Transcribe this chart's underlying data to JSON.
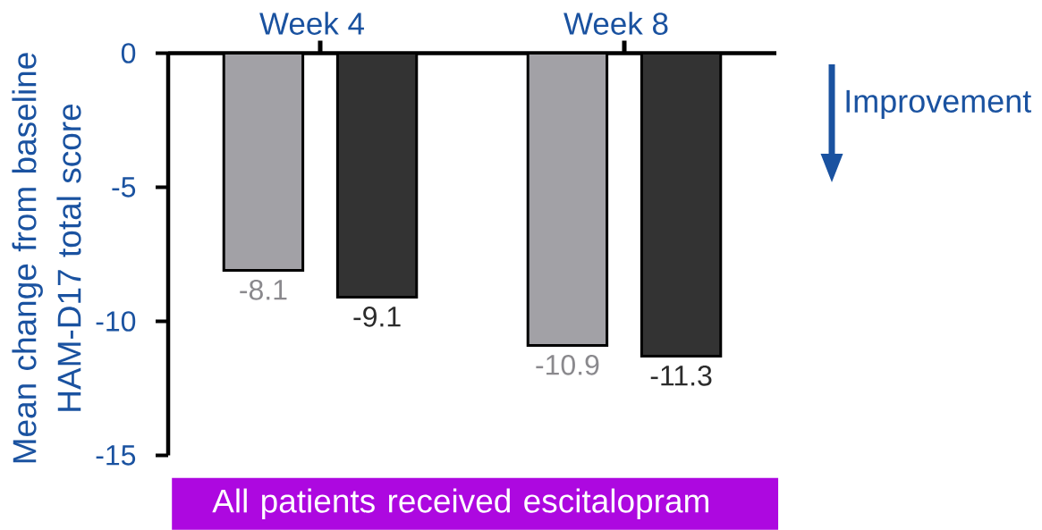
{
  "chart_data": {
    "type": "bar",
    "ylabel": "Mean change from baseline HAM-D17 total score",
    "categories": [
      "Week 4",
      "Week 8"
    ],
    "series": [
      {
        "color": "#a2a1a6",
        "values": [
          -8.1,
          -10.9
        ]
      },
      {
        "color": "#333333",
        "values": [
          -9.1,
          -11.3
        ]
      }
    ],
    "ylim": [
      -15,
      0
    ],
    "yticks": [
      -15,
      -10,
      -5,
      0
    ],
    "data_labels": true,
    "annotations": [
      "Improvement",
      "All patients received escitalopram"
    ]
  }
}
